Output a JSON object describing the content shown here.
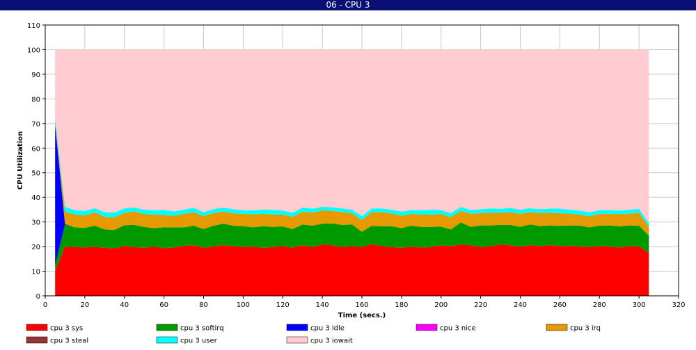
{
  "window": {
    "title": "06 - CPU 3"
  },
  "chart_data": {
    "type": "area",
    "stacked": true,
    "title": "06 - CPU 3",
    "xlabel": "Time (secs.)",
    "ylabel": "CPU Utilization",
    "xlim": [
      0,
      320
    ],
    "ylim": [
      0,
      110
    ],
    "xticks": [
      0,
      20,
      40,
      60,
      80,
      100,
      120,
      140,
      160,
      180,
      200,
      220,
      240,
      260,
      280,
      300,
      320
    ],
    "yticks": [
      0,
      10,
      20,
      30,
      40,
      50,
      60,
      70,
      80,
      90,
      100,
      110
    ],
    "grid": true,
    "legend_position": "bottom",
    "x": [
      5,
      10,
      15,
      20,
      25,
      30,
      35,
      40,
      45,
      50,
      55,
      60,
      65,
      70,
      75,
      80,
      85,
      90,
      95,
      100,
      105,
      110,
      115,
      120,
      125,
      130,
      135,
      140,
      145,
      150,
      155,
      160,
      165,
      170,
      175,
      180,
      185,
      190,
      195,
      200,
      205,
      210,
      215,
      220,
      225,
      230,
      235,
      240,
      245,
      250,
      255,
      260,
      265,
      270,
      275,
      280,
      285,
      290,
      295,
      300,
      305
    ],
    "series": [
      {
        "name": "cpu 3 sys",
        "color": "#ff0000",
        "values": [
          10,
          20,
          19.8,
          19.6,
          20,
          19.5,
          19.3,
          20.2,
          19.8,
          19.5,
          20,
          19.4,
          19.6,
          20.3,
          20.5,
          19.6,
          20,
          20.6,
          20.2,
          19.8,
          20,
          19.5,
          19.8,
          20.2,
          19.6,
          20.5,
          19.8,
          20.8,
          20.5,
          19.8,
          20.2,
          19.8,
          21,
          20.2,
          19.8,
          19.5,
          20,
          19.6,
          19.8,
          20.5,
          20.2,
          20.8,
          20.5,
          19.8,
          20.2,
          20.8,
          20.5,
          20,
          20.6,
          20.2,
          20.6,
          20.2,
          20.3,
          20,
          19.8,
          20.2,
          20.1,
          19.6,
          20.2,
          20,
          17.5
        ]
      },
      {
        "name": "cpu 3 softirq",
        "color": "#009900",
        "values": [
          2.5,
          9,
          8,
          8,
          8.5,
          7.5,
          7.5,
          8.5,
          9,
          8.5,
          7.5,
          8.4,
          8.2,
          7.5,
          8,
          7.5,
          8.5,
          8.7,
          8.3,
          8.5,
          7.8,
          8.8,
          8.2,
          8,
          7.5,
          8.5,
          8.7,
          8.5,
          8.9,
          9,
          8.8,
          6.2,
          7.5,
          8,
          8.5,
          8,
          8.5,
          8.4,
          8.2,
          7.6,
          6.8,
          9,
          7.5,
          8.8,
          8.4,
          8,
          8.3,
          8,
          8.4,
          8.1,
          8,
          8.2,
          8.3,
          8.5,
          8,
          8.3,
          8.5,
          8.6,
          8.4,
          8.5,
          7
        ]
      },
      {
        "name": "cpu 3 idle",
        "color": "#0000ff",
        "values": [
          57,
          0.2,
          0,
          0,
          0,
          0,
          0,
          0,
          0,
          0,
          0,
          0,
          0,
          0,
          0,
          0,
          0,
          0,
          0,
          0,
          0,
          0,
          0,
          0,
          0,
          0,
          0,
          0,
          0,
          0,
          0,
          0,
          0,
          0,
          0,
          0,
          0,
          0,
          0,
          0,
          0,
          0,
          0,
          0,
          0,
          0,
          0,
          0,
          0,
          0,
          0,
          0,
          0,
          0,
          0,
          0,
          0,
          0,
          0,
          0,
          0
        ]
      },
      {
        "name": "cpu 3 nice",
        "color": "#ff00ff",
        "values": [
          0,
          0,
          0,
          0,
          0,
          0,
          0,
          0,
          0,
          0,
          0,
          0,
          0,
          0,
          0,
          0,
          0,
          0,
          0,
          0,
          0,
          0,
          0,
          0,
          0,
          0,
          0,
          0,
          0,
          0,
          0,
          0,
          0,
          0,
          0,
          0,
          0,
          0,
          0,
          0,
          0,
          0,
          0,
          0,
          0,
          0,
          0,
          0,
          0,
          0,
          0,
          0,
          0,
          0,
          0,
          0,
          0,
          0,
          0,
          0,
          0
        ]
      },
      {
        "name": "cpu 3 irq",
        "color": "#e69900",
        "values": [
          1,
          5,
          5.2,
          5,
          5.5,
          5,
          5,
          5,
          5.5,
          5.2,
          5.5,
          5,
          4.7,
          5.5,
          5.5,
          5.3,
          5.1,
          5,
          5,
          5,
          5.3,
          5,
          5,
          4.8,
          5,
          5.2,
          5.3,
          5.4,
          5.1,
          5.3,
          4.5,
          4.8,
          5.5,
          5.8,
          5.2,
          5,
          4.8,
          5,
          5,
          5.1,
          5,
          4.7,
          5.3,
          5,
          5.1,
          4.9,
          5.2,
          5.3,
          5,
          5.3,
          5.1,
          5.1,
          4.8,
          4.5,
          4.5,
          4.8,
          4.7,
          5,
          4.8,
          5.2,
          3.6
        ]
      },
      {
        "name": "cpu 3 steal",
        "color": "#993333",
        "values": [
          0,
          0,
          0,
          0,
          0,
          0,
          0,
          0,
          0,
          0,
          0,
          0,
          0,
          0,
          0,
          0,
          0,
          0,
          0,
          0,
          0,
          0,
          0,
          0,
          0,
          0,
          0,
          0,
          0,
          0,
          0,
          0,
          0,
          0,
          0,
          0,
          0,
          0,
          0,
          0,
          0,
          0,
          0,
          0,
          0,
          0,
          0,
          0,
          0,
          0,
          0,
          0,
          0,
          0,
          0,
          0,
          0,
          0,
          0,
          0,
          0
        ]
      },
      {
        "name": "cpu 3 user",
        "color": "#00ffff",
        "values": [
          2,
          2,
          1.8,
          1.9,
          1.6,
          2,
          2,
          1.8,
          1.6,
          1.8,
          1.8,
          2.1,
          1.8,
          1.7,
          1.8,
          1.6,
          1.6,
          1.6,
          1.7,
          1.5,
          1.6,
          1.8,
          1.9,
          1.7,
          1.6,
          1.7,
          1.6,
          1.5,
          1.5,
          1.4,
          1.5,
          1.6,
          1.5,
          1.5,
          1.5,
          1.7,
          1.6,
          1.8,
          2,
          1.6,
          1.6,
          1.6,
          1.6,
          1.6,
          1.8,
          1.6,
          1.7,
          1.7,
          1.6,
          1.6,
          1.7,
          1.9,
          1.6,
          1.6,
          1.6,
          1.5,
          1.6,
          1.4,
          1.6,
          1.6,
          1.4
        ]
      },
      {
        "name": "cpu 3 iowait",
        "color": "#ffccd1",
        "values": [
          27.5,
          63.8,
          65.2,
          65.5,
          64.4,
          66,
          66.2,
          64.5,
          64.1,
          65,
          65.2,
          65.1,
          65.7,
          65,
          64.2,
          66,
          64.8,
          64.1,
          64.8,
          65.2,
          65.3,
          64.9,
          65.1,
          65.3,
          66.3,
          64.1,
          64.6,
          63.8,
          64,
          64.5,
          65,
          67.6,
          64.5,
          64.5,
          65,
          65.8,
          65.1,
          65.2,
          65,
          65.2,
          66.4,
          63.9,
          65.1,
          64.8,
          64.5,
          64.7,
          64.3,
          65,
          64.4,
          64.8,
          64.6,
          64.6,
          65,
          65.4,
          66.1,
          65.2,
          65.1,
          65.4,
          65,
          64.7,
          70.5
        ]
      }
    ]
  }
}
